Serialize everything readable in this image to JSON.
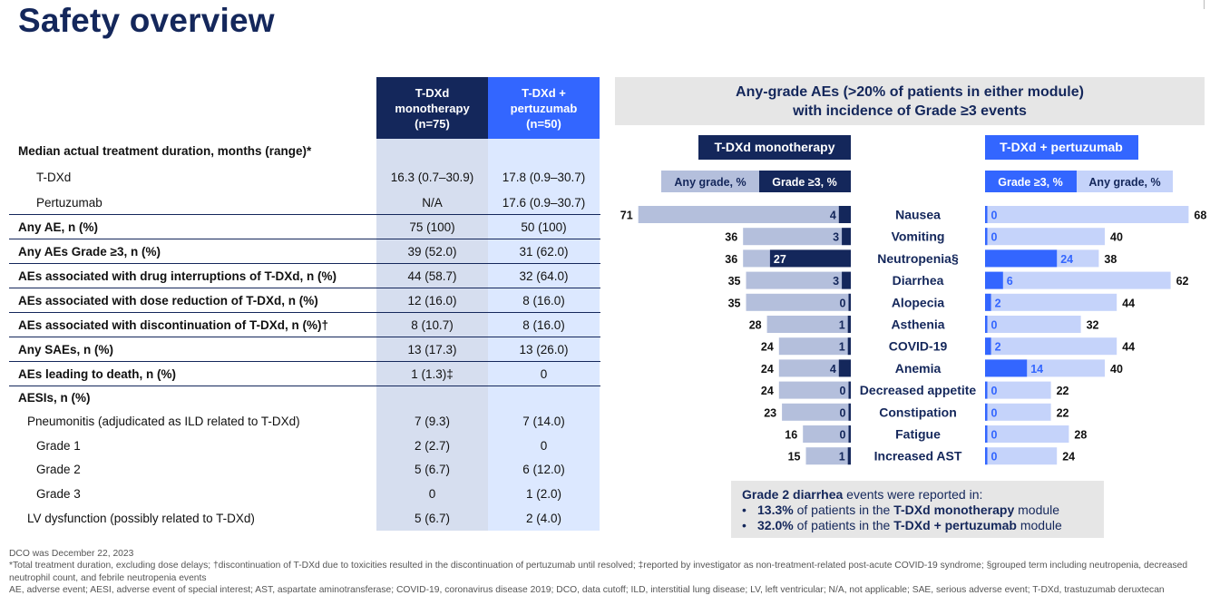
{
  "title": "Safety overview",
  "table": {
    "col1": [
      "T-DXd",
      "monotherapy",
      "(n=75)"
    ],
    "col2": [
      "T-DXd +",
      "pertuzumab",
      "(n=50)"
    ],
    "rows": [
      {
        "label": "Median actual treatment duration, months (range)*",
        "v1": "",
        "v2": "",
        "bold": true,
        "indent": 0,
        "h": 27
      },
      {
        "label": "T-DXd",
        "v1": "16.3 (0.7–30.9)",
        "v2": "17.8 (0.9–30.7)",
        "bold": false,
        "indent": 1,
        "h": 30
      },
      {
        "label": "Pertuzumab",
        "v1": "N/A",
        "v2": "17.6 (0.9–30.7)",
        "bold": false,
        "indent": 1,
        "h": 26
      },
      {
        "label": "Any AE, n (%)",
        "v1": "75 (100)",
        "v2": "50 (100)",
        "bold": true,
        "indent": 0,
        "h": 27,
        "line": true
      },
      {
        "label": "Any AEs Grade ≥3, n (%)",
        "v1": "39 (52.0)",
        "v2": "31 (62.0)",
        "bold": true,
        "indent": 0,
        "h": 27,
        "line": true
      },
      {
        "label": "AEs associated with drug interruptions of T-DXd, n (%)",
        "v1": "44 (58.7)",
        "v2": "32 (64.0)",
        "bold": true,
        "indent": 0,
        "h": 27,
        "line": true
      },
      {
        "label": "AEs associated with dose reduction of T-DXd, n (%)",
        "v1": "12 (16.0)",
        "v2": "8 (16.0)",
        "bold": true,
        "indent": 0,
        "h": 27,
        "line": true
      },
      {
        "label": "AEs associated with discontinuation of T-DXd, n (%)†",
        "v1": "8 (10.7)",
        "v2": "8 (16.0)",
        "bold": true,
        "indent": 0,
        "h": 27,
        "line": true
      },
      {
        "label": "Any SAEs, n (%)",
        "v1": "13 (17.3)",
        "v2": "13 (26.0)",
        "bold": true,
        "indent": 0,
        "h": 27,
        "line": true
      },
      {
        "label": "AEs leading to death, n (%)",
        "v1": "1 (1.3)‡",
        "v2": "0",
        "bold": true,
        "indent": 0,
        "h": 27,
        "line": true
      },
      {
        "label": "AESIs, n (%)",
        "v1": "",
        "v2": "",
        "bold": true,
        "indent": 0,
        "h": 26,
        "line": true
      },
      {
        "label": "Pneumonitis  (adjudicated as ILD related to T-DXd)",
        "v1": "7 (9.3)",
        "v2": "7 (14.0)",
        "bold": false,
        "indent": 2,
        "h": 27
      },
      {
        "label": "Grade 1",
        "v1": "2 (2.7)",
        "v2": "0",
        "bold": false,
        "indent": 3,
        "h": 26
      },
      {
        "label": "Grade 2",
        "v1": "5 (6.7)",
        "v2": "6 (12.0)",
        "bold": false,
        "indent": 3,
        "h": 27
      },
      {
        "label": "Grade 3",
        "v1": "0",
        "v2": "1 (2.0)",
        "bold": false,
        "indent": 3,
        "h": 27
      },
      {
        "label": "LV dysfunction (possibly related to T-DXd)",
        "v1": "5 (6.7)",
        "v2": "2 (4.0)",
        "bold": false,
        "indent": 2,
        "h": 27
      }
    ]
  },
  "chart_header": [
    "Any-grade AEs (>20% of patients in either module)",
    "with incidence of Grade ≥3 events"
  ],
  "chart_data": {
    "type": "bar",
    "categories": [
      "Nausea",
      "Vomiting",
      "Neutropenia§",
      "Diarrhea",
      "Alopecia",
      "Asthenia",
      "COVID-19",
      "Anemia",
      "Decreased appetite",
      "Constipation",
      "Fatigue",
      "Increased AST"
    ],
    "panels": [
      {
        "name": "T-DXd monotherapy",
        "any_label": "Any grade, %",
        "g3_label": "Grade ≥3, %",
        "any_grade": [
          71,
          36,
          36,
          35,
          35,
          28,
          24,
          24,
          24,
          23,
          16,
          15
        ],
        "grade3": [
          4,
          3,
          27,
          3,
          0,
          1,
          1,
          4,
          0,
          0,
          0,
          1
        ]
      },
      {
        "name": "T-DXd + pertuzumab",
        "any_label": "Any grade, %",
        "g3_label": "Grade ≥3, %",
        "any_grade": [
          68,
          40,
          38,
          62,
          44,
          32,
          44,
          40,
          22,
          22,
          28,
          24
        ],
        "grade3": [
          0,
          0,
          24,
          6,
          2,
          0,
          2,
          14,
          0,
          0,
          0,
          0
        ]
      }
    ],
    "colors": {
      "mono_any": "#b4bfdc",
      "mono_g3": "#14275b",
      "pert_any": "#c5d3fa",
      "pert_g3": "#3366ff",
      "pert_label": "#3366ff"
    }
  },
  "callout": {
    "line1_bold": "Grade 2 diarrhea",
    "line1_rest": " events were reported in:",
    "b1_pct": "13.3%",
    "b1_mid": " of patients in the ",
    "b1_arm": "T-DXd monotherapy",
    "b1_end": " module",
    "b2_pct": "32.0%",
    "b2_mid": " of patients in the ",
    "b2_arm": "T-DXd + pertuzumab",
    "b2_end": " module",
    "bullet": "•"
  },
  "notes": [
    "DCO was December 22, 2023",
    "*Total treatment duration, excluding dose delays; †discontinuation of T-DXd due to toxicities resulted in the discontinuation of pertuzumab until resolved; ‡reported by investigator as non-treatment-related post-acute COVID-19 syndrome; §grouped term including neutropenia, decreased neutrophil count, and febrile neutropenia events",
    "AE, adverse event; AESI, adverse event of special interest; AST, aspartate aminotransferase; COVID-19, coronavirus disease 2019; DCO, data cutoff; ILD, interstitial lung disease; LV, left ventricular; N/A, not applicable; SAE, serious adverse event; T-DXd, trastuzumab deruxtecan"
  ]
}
